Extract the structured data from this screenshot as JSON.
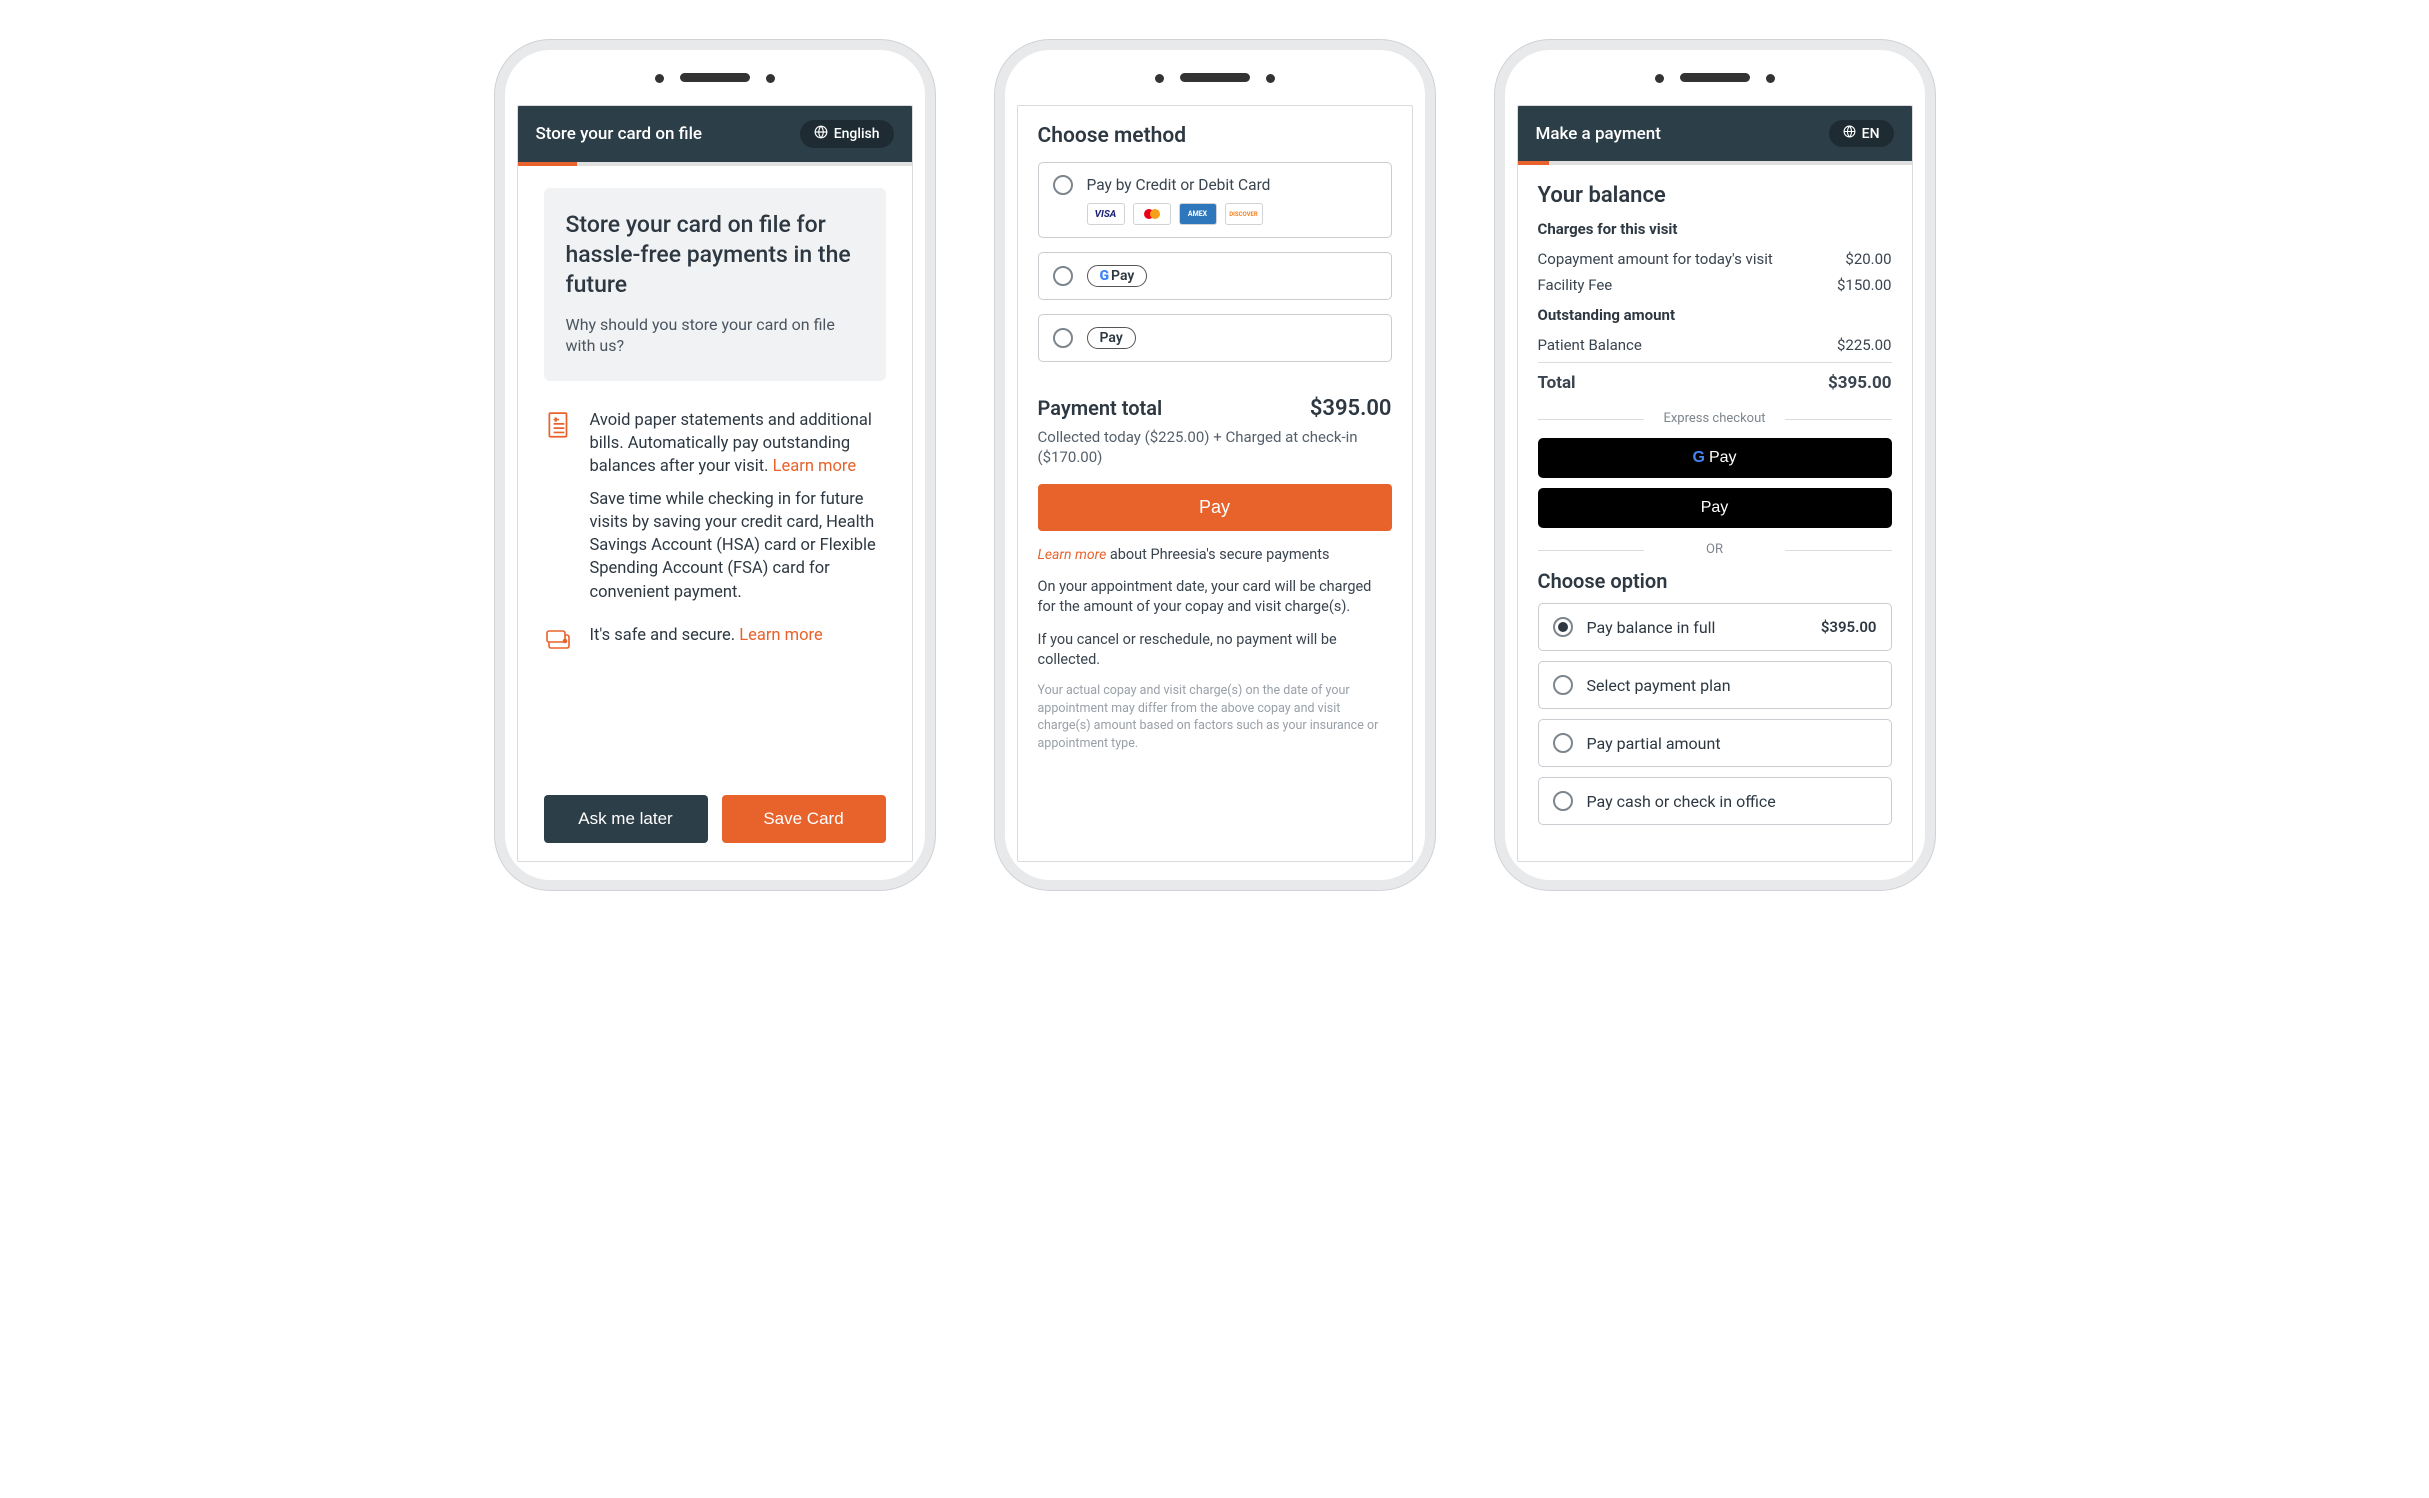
{
  "colors": {
    "header_bg": "#2c3e47",
    "accent": "#e8622b",
    "text": "#2d3842",
    "muted": "#7d858d",
    "border": "#c9ccd0",
    "intro_bg": "#f1f2f3",
    "black": "#000000"
  },
  "phone1": {
    "header_title": "Store your card on file",
    "lang_label": "English",
    "progress_pct": "15%",
    "intro_heading": "Store your card on file for hassle-free payments in the future",
    "intro_sub": "Why should you store your card on file with us?",
    "feature1": "Avoid paper statements and additional bills. Automatically pay outstanding balances after your visit. ",
    "feature1_link": "Learn more",
    "feature2": "Save time while checking in for future visits by saving your credit card, Health Savings Account (HSA) card or Flexible Spending Account (FSA) card for convenient payment.",
    "feature3": "It's safe and secure. ",
    "feature3_link": "Learn more",
    "btn_later": "Ask me later",
    "btn_save": "Save Card"
  },
  "phone2": {
    "choose_title": "Choose method",
    "method_card_label": "Pay by Credit or Debit Card",
    "card_brands": [
      "VISA",
      "mastercard",
      "AMEX",
      "DISCOVER"
    ],
    "method_gpay": "G Pay",
    "method_apay": "Pay",
    "payment_total_label": "Payment total",
    "payment_total_amount": "$395.00",
    "collected_line": "Collected today ($225.00) + Charged at check-in ($170.00)",
    "pay_btn": "Pay",
    "learn_more": "Learn more",
    "learn_more_tail": "  about Phreesia's secure payments",
    "note1": "On your appointment date, your card will be charged for the amount of your copay and visit charge(s).",
    "note2": "If you cancel or reschedule, no payment will be collected.",
    "fine": "Your actual copay and visit charge(s) on the date of your appointment may differ from the above copay and visit charge(s) amount based on factors such as your insurance or appointment type."
  },
  "phone3": {
    "header_title": "Make a payment",
    "lang_label": "EN",
    "progress_pct": "8%",
    "balance_title": "Your balance",
    "charges_heading": "Charges for this visit",
    "lines_visit": [
      {
        "label": "Copayment amount for today's visit",
        "amount": "$20.00"
      },
      {
        "label": "Facility Fee",
        "amount": "$150.00"
      }
    ],
    "outstanding_heading": "Outstanding amount",
    "lines_outstanding": [
      {
        "label": "Patient Balance",
        "amount": "$225.00"
      }
    ],
    "total_label": "Total",
    "total_amount": "$395.00",
    "express_label": "Express checkout",
    "gpay_label": "G Pay",
    "apay_label": "Pay",
    "or_label": "OR",
    "choose_option_title": "Choose option",
    "options": [
      {
        "label": "Pay balance in full",
        "amount": "$395.00",
        "selected": true
      },
      {
        "label": "Select payment plan",
        "amount": "",
        "selected": false
      },
      {
        "label": "Pay partial amount",
        "amount": "",
        "selected": false
      },
      {
        "label": "Pay cash or check in office",
        "amount": "",
        "selected": false
      }
    ]
  }
}
